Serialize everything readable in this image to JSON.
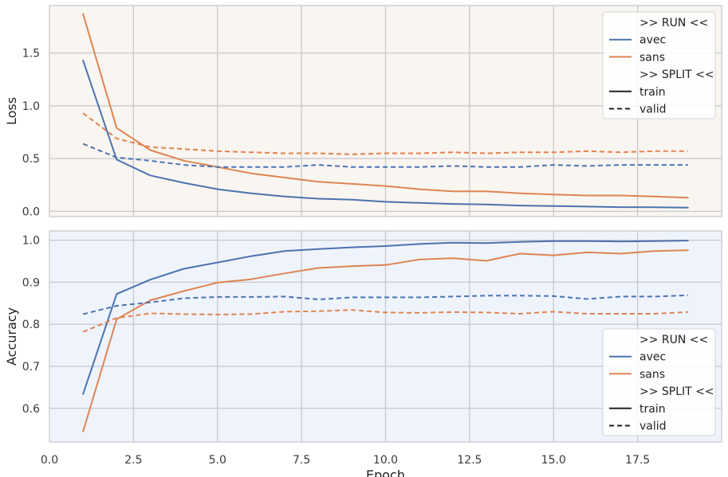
{
  "chart_data": [
    {
      "type": "line",
      "ylabel": "Loss",
      "xlabel": "",
      "xlim": [
        0,
        20
      ],
      "ylim": [
        -0.05,
        1.95
      ],
      "xticks": [
        "0.0",
        "2.5",
        "5.0",
        "7.5",
        "10.0",
        "12.5",
        "15.0",
        "17.5"
      ],
      "xtick_values": [
        0,
        2.5,
        5,
        7.5,
        10,
        12.5,
        15,
        17.5
      ],
      "show_xtick_labels": false,
      "yticks": [
        "0.0",
        "0.5",
        "1.0",
        "1.5"
      ],
      "ytick_values": [
        0,
        0.5,
        1.0,
        1.5
      ],
      "background": "#f9f5f0",
      "grid": true,
      "x": [
        1,
        2,
        3,
        4,
        5,
        6,
        7,
        8,
        9,
        10,
        11,
        12,
        13,
        14,
        15,
        16,
        17,
        18,
        19
      ],
      "series": [
        {
          "name": "avec",
          "split": "train",
          "color": "#4c72b0",
          "dashed": false,
          "values": [
            1.43,
            0.49,
            0.34,
            0.27,
            0.21,
            0.17,
            0.14,
            0.12,
            0.11,
            0.09,
            0.08,
            0.07,
            0.065,
            0.055,
            0.05,
            0.045,
            0.04,
            0.038,
            0.035
          ]
        },
        {
          "name": "sans",
          "split": "train",
          "color": "#dd8452",
          "dashed": false,
          "values": [
            1.87,
            0.79,
            0.58,
            0.48,
            0.42,
            0.36,
            0.32,
            0.28,
            0.26,
            0.24,
            0.21,
            0.19,
            0.19,
            0.17,
            0.16,
            0.15,
            0.15,
            0.14,
            0.13
          ]
        },
        {
          "name": "avec",
          "split": "valid",
          "color": "#4c72b0",
          "dashed": true,
          "values": [
            0.64,
            0.51,
            0.48,
            0.44,
            0.42,
            0.42,
            0.42,
            0.44,
            0.42,
            0.42,
            0.42,
            0.43,
            0.42,
            0.42,
            0.44,
            0.43,
            0.44,
            0.44,
            0.44
          ]
        },
        {
          "name": "sans",
          "split": "valid",
          "color": "#dd8452",
          "dashed": true,
          "values": [
            0.93,
            0.69,
            0.61,
            0.59,
            0.57,
            0.56,
            0.55,
            0.55,
            0.54,
            0.55,
            0.55,
            0.56,
            0.55,
            0.56,
            0.56,
            0.57,
            0.56,
            0.57,
            0.57
          ]
        }
      ],
      "legend": {
        "placement": "top-right",
        "run_header": ">> RUN <<",
        "run_entries": [
          {
            "label": "avec",
            "color": "#4c72b0"
          },
          {
            "label": "sans",
            "color": "#dd8452"
          }
        ],
        "split_header": ">> SPLIT <<",
        "split_entries": [
          {
            "label": "train",
            "dashed": false
          },
          {
            "label": "valid",
            "dashed": true
          }
        ]
      }
    },
    {
      "type": "line",
      "ylabel": "Accuracy",
      "xlabel": "Epoch",
      "xlim": [
        0,
        20
      ],
      "ylim": [
        0.52,
        1.022
      ],
      "xticks": [
        "0.0",
        "2.5",
        "5.0",
        "7.5",
        "10.0",
        "12.5",
        "15.0",
        "17.5"
      ],
      "xtick_values": [
        0,
        2.5,
        5,
        7.5,
        10,
        12.5,
        15,
        17.5
      ],
      "show_xtick_labels": true,
      "yticks": [
        "0.6",
        "0.7",
        "0.8",
        "0.9",
        "1.0"
      ],
      "ytick_values": [
        0.6,
        0.7,
        0.8,
        0.9,
        1.0
      ],
      "background": "#eff4fc",
      "grid": true,
      "x": [
        1,
        2,
        3,
        4,
        5,
        6,
        7,
        8,
        9,
        10,
        11,
        12,
        13,
        14,
        15,
        16,
        17,
        18,
        19
      ],
      "series": [
        {
          "name": "avec",
          "split": "train",
          "color": "#4c72b0",
          "dashed": false,
          "values": [
            0.634,
            0.872,
            0.906,
            0.932,
            0.947,
            0.962,
            0.974,
            0.979,
            0.983,
            0.986,
            0.991,
            0.994,
            0.993,
            0.996,
            0.998,
            0.998,
            0.997,
            0.998,
            0.999
          ]
        },
        {
          "name": "sans",
          "split": "train",
          "color": "#dd8452",
          "dashed": false,
          "values": [
            0.545,
            0.812,
            0.857,
            0.879,
            0.899,
            0.907,
            0.921,
            0.934,
            0.938,
            0.941,
            0.954,
            0.957,
            0.951,
            0.968,
            0.964,
            0.971,
            0.968,
            0.974,
            0.976
          ]
        },
        {
          "name": "avec",
          "split": "valid",
          "color": "#4c72b0",
          "dashed": true,
          "values": [
            0.824,
            0.844,
            0.852,
            0.862,
            0.865,
            0.865,
            0.866,
            0.859,
            0.864,
            0.864,
            0.864,
            0.866,
            0.868,
            0.868,
            0.867,
            0.86,
            0.866,
            0.866,
            0.869
          ]
        },
        {
          "name": "sans",
          "split": "valid",
          "color": "#dd8452",
          "dashed": true,
          "values": [
            0.782,
            0.815,
            0.826,
            0.824,
            0.823,
            0.824,
            0.83,
            0.831,
            0.834,
            0.828,
            0.827,
            0.829,
            0.828,
            0.825,
            0.83,
            0.825,
            0.825,
            0.825,
            0.829
          ]
        }
      ],
      "legend": {
        "placement": "lower-right",
        "run_header": ">> RUN <<",
        "run_entries": [
          {
            "label": "avec",
            "color": "#4c72b0"
          },
          {
            "label": "sans",
            "color": "#dd8452"
          }
        ],
        "split_header": ">> SPLIT <<",
        "split_entries": [
          {
            "label": "train",
            "dashed": false
          },
          {
            "label": "valid",
            "dashed": true
          }
        ]
      }
    }
  ]
}
